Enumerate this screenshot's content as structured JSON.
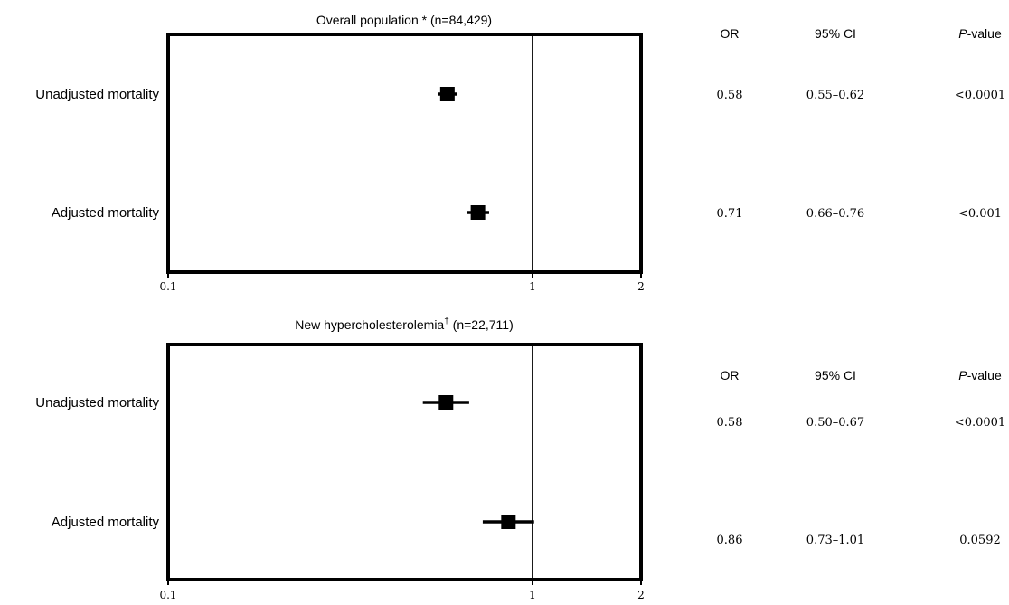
{
  "chart_data": [
    {
      "type": "forest",
      "title": "Overall population * (n=84,429)",
      "title_main": "Overall population * (n=84,429)",
      "title_sup": "",
      "x_scale": "log",
      "xlim": [
        0.1,
        2
      ],
      "xticks": [
        "0.1",
        "1",
        "2"
      ],
      "reference_line": 1,
      "columns": [
        "OR",
        "95% CI",
        "P-value"
      ],
      "rows": [
        {
          "label": "Unadjusted mortality",
          "or": 0.58,
          "ci_low": 0.55,
          "ci_high": 0.62,
          "or_text": "0.58",
          "ci_text": "0.55–0.62",
          "p_text": "<0.0001"
        },
        {
          "label": "Adjusted mortality",
          "or": 0.71,
          "ci_low": 0.66,
          "ci_high": 0.76,
          "or_text": "0.71",
          "ci_text": "0.66–0.76",
          "p_text": "<0.001"
        }
      ]
    },
    {
      "type": "forest",
      "title": "New hypercholesterolemia† (n=22,711)",
      "title_main": "New hypercholesterolemia",
      "title_sup": "†",
      "title_tail": " (n=22,711)",
      "x_scale": "log",
      "xlim": [
        0.1,
        2
      ],
      "xticks": [
        "0.1",
        "1",
        "2"
      ],
      "reference_line": 1,
      "columns": [
        "OR",
        "95% CI",
        "P-value"
      ],
      "rows": [
        {
          "label": "Unadjusted mortality",
          "or": 0.58,
          "ci_low": 0.5,
          "ci_high": 0.67,
          "or_text": "0.58",
          "ci_text": "0.50–0.67",
          "p_text": "<0.0001"
        },
        {
          "label": "Adjusted mortality",
          "or": 0.86,
          "ci_low": 0.73,
          "ci_high": 1.01,
          "or_text": "0.86",
          "ci_text": "0.73–1.01",
          "p_text": "0.0592"
        }
      ]
    }
  ]
}
